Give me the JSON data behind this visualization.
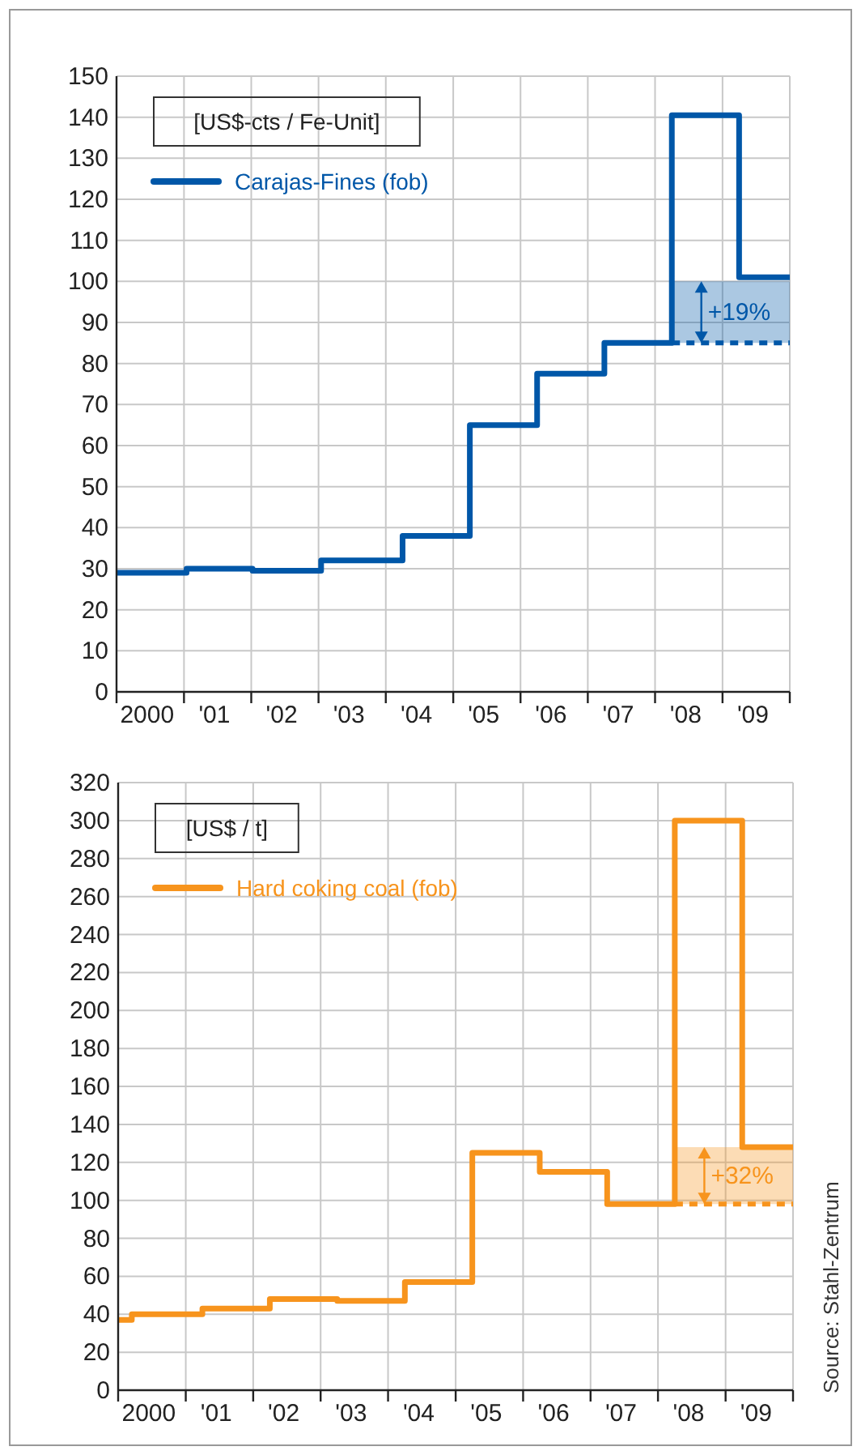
{
  "chart_data": [
    {
      "type": "step",
      "ylabel": "[US$-cts / Fe-Unit]",
      "xlim": [
        "2000-01-01",
        "2010-01-01"
      ],
      "ylim": [
        0,
        150
      ],
      "xticks": [
        {
          "value": "2000-01-01",
          "label": null
        },
        {
          "value": "2001-01-01",
          "label": null
        },
        {
          "value": "2002-01-01",
          "label": null
        },
        {
          "value": "2003-01-01",
          "label": null
        },
        {
          "value": "2004-01-01",
          "label": null
        },
        {
          "value": "2005-01-01",
          "label": null
        },
        {
          "value": "2006-01-01",
          "label": null
        },
        {
          "value": "2007-01-01",
          "label": null
        },
        {
          "value": "2008-01-01",
          "label": null
        },
        {
          "value": "2009-01-01",
          "label": null
        },
        {
          "value": "2010-01-01",
          "label": null
        },
        {
          "value": "2000-06-15",
          "label": "2000"
        },
        {
          "value": "2001-06-15",
          "label": "'01"
        },
        {
          "value": "2002-06-15",
          "label": "'02"
        },
        {
          "value": "2003-06-15",
          "label": "'03"
        },
        {
          "value": "2004-06-15",
          "label": "'04"
        },
        {
          "value": "2005-06-15",
          "label": "'05"
        },
        {
          "value": "2006-06-15",
          "label": "'06"
        },
        {
          "value": "2007-06-15",
          "label": "'07"
        },
        {
          "value": "2008-06-15",
          "label": "'08"
        },
        {
          "value": "2009-06-15",
          "label": "'09"
        }
      ],
      "yticks": [
        0,
        10,
        20,
        30,
        40,
        50,
        60,
        70,
        80,
        90,
        100,
        110,
        120,
        130,
        140,
        150
      ],
      "grid": true,
      "legend": "top left",
      "series": [
        {
          "name": "Carajas-Fines (fob)",
          "color": "#0057a8",
          "x": [
            "2000-01-01",
            "2001-01-15",
            "2002-01-08",
            "2003-01-15",
            "2004-04-01",
            "2005-04-01",
            "2006-04-01",
            "2007-04-01",
            "2008-04-01",
            "2009-04-01",
            "2010-01-01"
          ],
          "values": [
            29,
            30,
            29.5,
            32,
            38,
            65,
            77.5,
            85,
            140.5,
            101,
            101
          ]
        },
        {
          "type": "line",
          "color": "#0057a8",
          "line_style": "dashed",
          "x": [
            "2008-04-01",
            "2010-01-01"
          ],
          "values": [
            85,
            85
          ],
          "lower": [
            85,
            85
          ],
          "upper": [
            100,
            100
          ]
        }
      ],
      "annotations": [
        "+19%"
      ]
    },
    {
      "type": "step",
      "ylabel": "[US$ / t]",
      "xlim": [
        "2000-01-01",
        "2010-01-01"
      ],
      "ylim": [
        0,
        320
      ],
      "xticks": [
        {
          "value": "2000-01-01",
          "label": null
        },
        {
          "value": "2001-01-01",
          "label": null
        },
        {
          "value": "2002-01-01",
          "label": null
        },
        {
          "value": "2003-01-01",
          "label": null
        },
        {
          "value": "2004-01-01",
          "label": null
        },
        {
          "value": "2005-01-01",
          "label": null
        },
        {
          "value": "2006-01-01",
          "label": null
        },
        {
          "value": "2007-01-01",
          "label": null
        },
        {
          "value": "2008-01-01",
          "label": null
        },
        {
          "value": "2009-01-01",
          "label": null
        },
        {
          "value": "2010-01-01",
          "label": null
        },
        {
          "value": "2000-06-15",
          "label": "2000"
        },
        {
          "value": "2001-06-15",
          "label": "'01"
        },
        {
          "value": "2002-06-15",
          "label": "'02"
        },
        {
          "value": "2003-06-15",
          "label": "'03"
        },
        {
          "value": "2004-06-15",
          "label": "'04"
        },
        {
          "value": "2005-06-15",
          "label": "'05"
        },
        {
          "value": "2006-06-15",
          "label": "'06"
        },
        {
          "value": "2007-06-15",
          "label": "'07"
        },
        {
          "value": "2008-06-15",
          "label": "'08"
        },
        {
          "value": "2009-06-15",
          "label": "'09"
        }
      ],
      "yticks": [
        0,
        20,
        40,
        60,
        80,
        100,
        120,
        140,
        160,
        180,
        200,
        220,
        240,
        260,
        280,
        300,
        320
      ],
      "grid": true,
      "legend": "top left",
      "series": [
        {
          "name": "Hard coking coal (fob)",
          "color": "#f7941d",
          "x": [
            "2000-01-01",
            "2000-03-15",
            "2001-04-01",
            "2002-04-01",
            "2003-04-01",
            "2004-04-01",
            "2005-04-01",
            "2006-04-01",
            "2007-04-01",
            "2008-04-01",
            "2009-04-01",
            "2010-01-01"
          ],
          "values": [
            37,
            40,
            43,
            48,
            47,
            57,
            125,
            115,
            98,
            300,
            128,
            128
          ]
        },
        {
          "type": "line",
          "color": "#f7941d",
          "line_style": "dashed",
          "x": [
            "2008-04-01",
            "2010-01-01"
          ],
          "values": [
            98,
            98
          ],
          "lower": [
            98,
            98
          ],
          "upper": [
            128,
            128
          ]
        }
      ],
      "annotations": [
        "+32%",
        "Source: Stahl-Zentrum"
      ]
    }
  ]
}
